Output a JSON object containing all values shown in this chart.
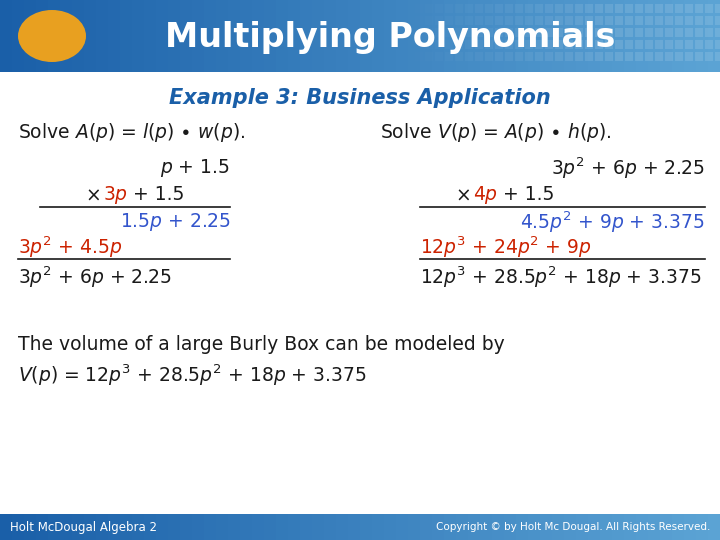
{
  "title": "Multiplying Polynomials",
  "subtitle": "Example 3: Business Application",
  "header_bg_left": "#1a5fa8",
  "header_bg_right": "#4a8ec2",
  "header_text_color": "#FFFFFF",
  "subtitle_color": "#1a5fa8",
  "body_bg": "#FFFFFF",
  "black_text": "#1A1A1A",
  "blue_text": "#3355CC",
  "red_text": "#CC2200",
  "footer_bg": "#2E6EA6",
  "footer_text_left": "Holt McDougal Algebra 2",
  "footer_text_right": "Copyright © by Holt Mc Dougal. All Rights Reserved.",
  "oval_color": "#E8A020"
}
